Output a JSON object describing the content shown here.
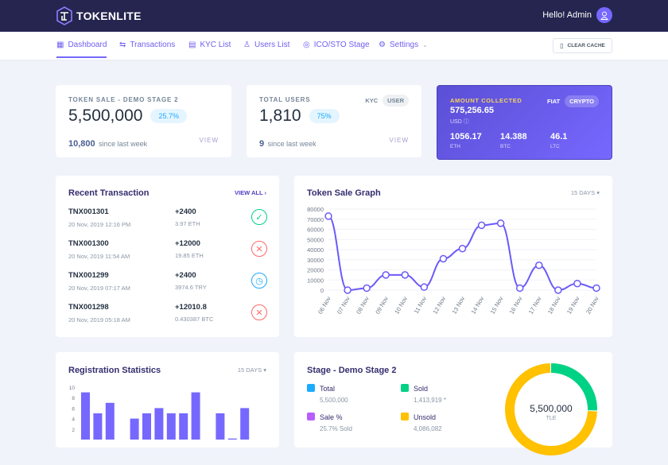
{
  "header": {
    "brand": "TOKENLITE",
    "greeting": "Hello! Admin"
  },
  "nav": {
    "items": [
      {
        "label": "Dashboard",
        "icon": "dashboard-icon",
        "active": true
      },
      {
        "label": "Transactions",
        "icon": "arrows-icon"
      },
      {
        "label": "KYC List",
        "icon": "list-icon"
      },
      {
        "label": "Users List",
        "icon": "users-icon"
      },
      {
        "label": "ICO/STO Stage",
        "icon": "coins-icon"
      },
      {
        "label": "Settings",
        "icon": "gear-icon"
      }
    ],
    "clear_cache": "CLEAR CACHE"
  },
  "token_sale": {
    "label": "TOKEN SALE - DEMO STAGE 2",
    "value": "5,500,000",
    "percent": "25.7%",
    "weekly": "10,800",
    "weekly_label": "since last week",
    "view": "VIEW"
  },
  "users": {
    "label": "TOTAL USERS",
    "value": "1,810",
    "percent": "75%",
    "weekly": "9",
    "weekly_label": "since last week",
    "view": "VIEW",
    "tab_kyc": "KYC",
    "tab_user": "USER"
  },
  "amount": {
    "label": "AMOUNT COLLECTED",
    "fiat": "FIAT",
    "crypto": "CRYPTO",
    "value": "575,256.65",
    "currency": "USD",
    "coins": [
      {
        "v": "1056.17",
        "c": "ETH"
      },
      {
        "v": "14.388",
        "c": "BTC"
      },
      {
        "v": "46.1",
        "c": "LTC"
      }
    ]
  },
  "recent": {
    "title": "Recent Transaction",
    "view_all": "VIEW ALL",
    "rows": [
      {
        "id": "TNX001301",
        "date": "20 Nov, 2019 12:16 PM",
        "amount": "+2400",
        "sub": "3.97 ETH",
        "status": "approved"
      },
      {
        "id": "TNX001300",
        "date": "20 Nov, 2019 11:54 AM",
        "amount": "+12000",
        "sub": "19.85 ETH",
        "status": "canceled"
      },
      {
        "id": "TNX001299",
        "date": "20 Nov, 2019 07:17 AM",
        "amount": "+2400",
        "sub": "3974.6 TRY",
        "status": "pending"
      },
      {
        "id": "TNX001298",
        "date": "20 Nov, 2019 05:18 AM",
        "amount": "+12010.8",
        "sub": "0.430387 BTC",
        "status": "canceled"
      }
    ]
  },
  "chart_data": [
    {
      "type": "line",
      "title": "Token Sale Graph",
      "range": "15 DAYS",
      "categories": [
        "06 Nov",
        "07 Nov",
        "08 Nov",
        "09 Nov",
        "10 Nov",
        "11 Nov",
        "12 Nov",
        "13 Nov",
        "14 Nov",
        "15 Nov",
        "16 Nov",
        "17 Nov",
        "18 Nov",
        "19 Nov",
        "20 Nov"
      ],
      "values": [
        73000,
        0,
        2000,
        15000,
        15000,
        3000,
        31000,
        41000,
        64000,
        66000,
        2000,
        24500,
        0,
        6500,
        2000
      ],
      "ylim": [
        0,
        80000
      ],
      "yticks": [
        0,
        10000,
        20000,
        30000,
        40000,
        50000,
        60000,
        70000,
        80000
      ],
      "color": "#6a5af9",
      "grid": true
    },
    {
      "type": "bar",
      "title": "Registration Statistics",
      "range": "15 DAYS",
      "values": [
        9,
        5,
        7,
        0,
        4,
        5,
        6,
        5,
        5,
        9,
        0,
        5,
        0.2,
        6,
        0
      ],
      "ylim": [
        0,
        10
      ],
      "yticks": [
        2,
        4,
        6,
        8,
        10
      ],
      "color": "#7668fe"
    },
    {
      "type": "pie",
      "title": "Stage - Demo Stage 2",
      "center_value": "5,500,000",
      "center_unit": "TLE",
      "slices": [
        {
          "name": "Sold",
          "value": 1413919,
          "color": "#00d285"
        },
        {
          "name": "Unsold",
          "value": 4086082,
          "color": "#ffc100"
        }
      ]
    }
  ],
  "stage": {
    "legend": [
      {
        "name": "Total",
        "value": "5,500,000",
        "color": "#1babfe"
      },
      {
        "name": "Sold",
        "value": "1,413,919 *",
        "color": "#00d285"
      },
      {
        "name": "Sale %",
        "value": "25.7% Sold",
        "color": "#b75eff"
      },
      {
        "name": "Unsold",
        "value": "4,086,082",
        "color": "#ffc100"
      }
    ]
  }
}
